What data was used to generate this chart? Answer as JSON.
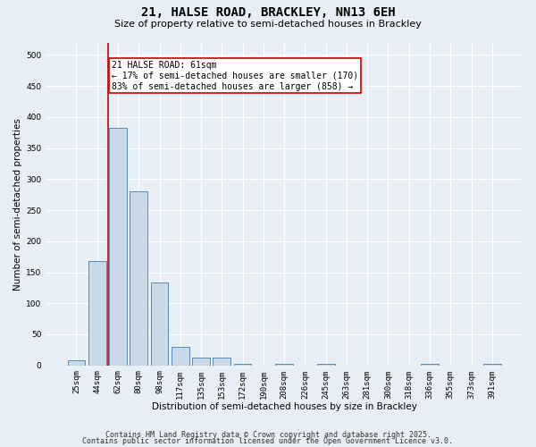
{
  "title": "21, HALSE ROAD, BRACKLEY, NN13 6EH",
  "subtitle": "Size of property relative to semi-detached houses in Brackley",
  "xlabel": "Distribution of semi-detached houses by size in Brackley",
  "ylabel": "Number of semi-detached properties",
  "bin_labels": [
    "25sqm",
    "44sqm",
    "62sqm",
    "80sqm",
    "98sqm",
    "117sqm",
    "135sqm",
    "153sqm",
    "172sqm",
    "190sqm",
    "208sqm",
    "226sqm",
    "245sqm",
    "263sqm",
    "281sqm",
    "300sqm",
    "318sqm",
    "336sqm",
    "355sqm",
    "373sqm",
    "391sqm"
  ],
  "bar_values": [
    8,
    168,
    383,
    280,
    133,
    30,
    13,
    13,
    3,
    0,
    3,
    0,
    3,
    0,
    0,
    0,
    0,
    3,
    0,
    0,
    3
  ],
  "bar_color": "#c9d9e8",
  "bar_edge_color": "#5a8ab5",
  "red_line_index": 1.55,
  "property_label": "21 HALSE ROAD: 61sqm",
  "smaller_pct": "17% of semi-detached houses are smaller (170)",
  "larger_pct": "83% of semi-detached houses are larger (858)",
  "annotation_box_color": "#ffffff",
  "annotation_box_edge": "#cc0000",
  "red_line_color": "#cc0000",
  "ylim": [
    0,
    520
  ],
  "yticks": [
    0,
    50,
    100,
    150,
    200,
    250,
    300,
    350,
    400,
    450,
    500
  ],
  "background_color": "#e8eef5",
  "footer_line1": "Contains HM Land Registry data © Crown copyright and database right 2025.",
  "footer_line2": "Contains public sector information licensed under the Open Government Licence v3.0.",
  "title_fontsize": 10,
  "subtitle_fontsize": 8,
  "axis_fontsize": 7.5,
  "tick_fontsize": 6.5,
  "footer_fontsize": 6,
  "annotation_fontsize": 7
}
